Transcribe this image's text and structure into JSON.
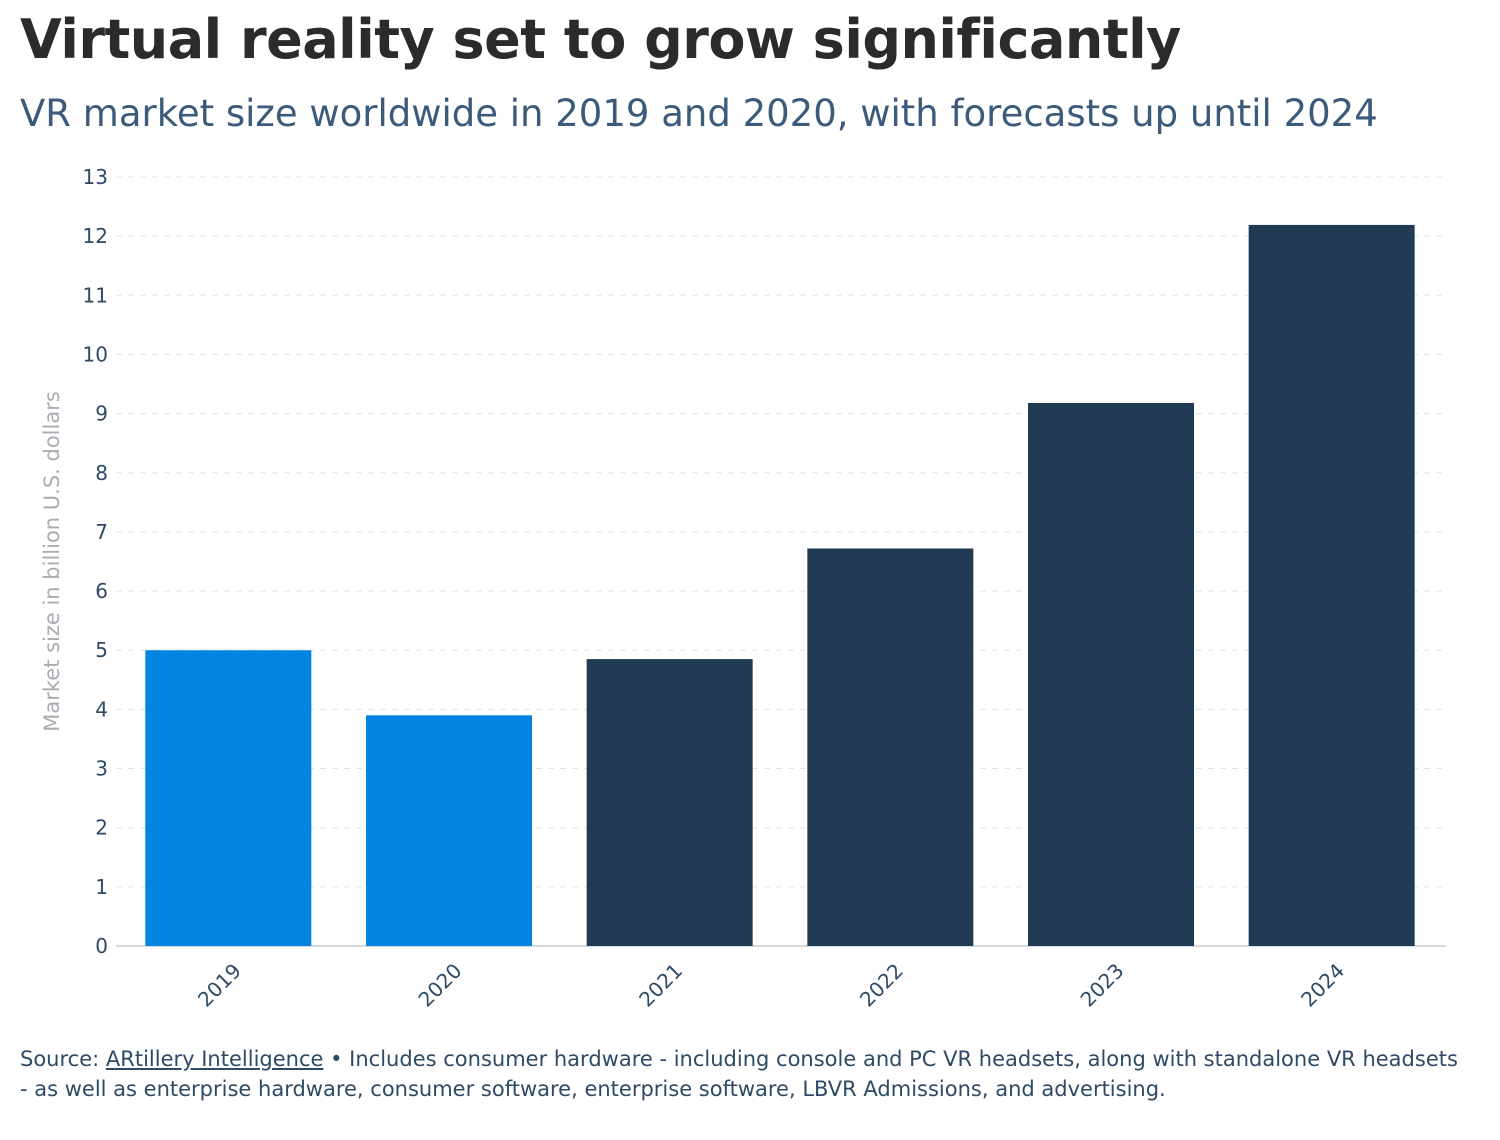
{
  "header": {
    "title": "Virtual reality set to grow significantly",
    "subtitle": "VR market size worldwide in 2019 and 2020, with forecasts up until 2024"
  },
  "footer": {
    "source_prefix": "Source: ",
    "source_name": "ARtillery Intelligence",
    "note": " • Includes consumer hardware - including console and PC VR headsets, along with standalone VR headsets - as well as enterprise hardware, consumer software, enterprise software, LBVR Admissions, and advertising."
  },
  "chart_data": {
    "type": "bar",
    "categories": [
      "2019",
      "2020",
      "2021",
      "2022",
      "2023",
      "2024"
    ],
    "values": [
      5.0,
      3.9,
      4.85,
      6.72,
      9.18,
      12.19
    ],
    "bar_colors": [
      "#0284e0",
      "#0284e0",
      "#213b54",
      "#213b54",
      "#213b54",
      "#213b54"
    ],
    "title": "Virtual reality set to grow significantly",
    "subtitle": "VR market size worldwide in 2019 and 2020, with forecasts up until 2024",
    "xlabel": "",
    "ylabel": "Market size in billion U.S. dollars",
    "ylim": [
      0,
      13
    ],
    "yticks": [
      0,
      1,
      2,
      3,
      4,
      5,
      6,
      7,
      8,
      9,
      10,
      11,
      12,
      13
    ],
    "grid": true
  }
}
